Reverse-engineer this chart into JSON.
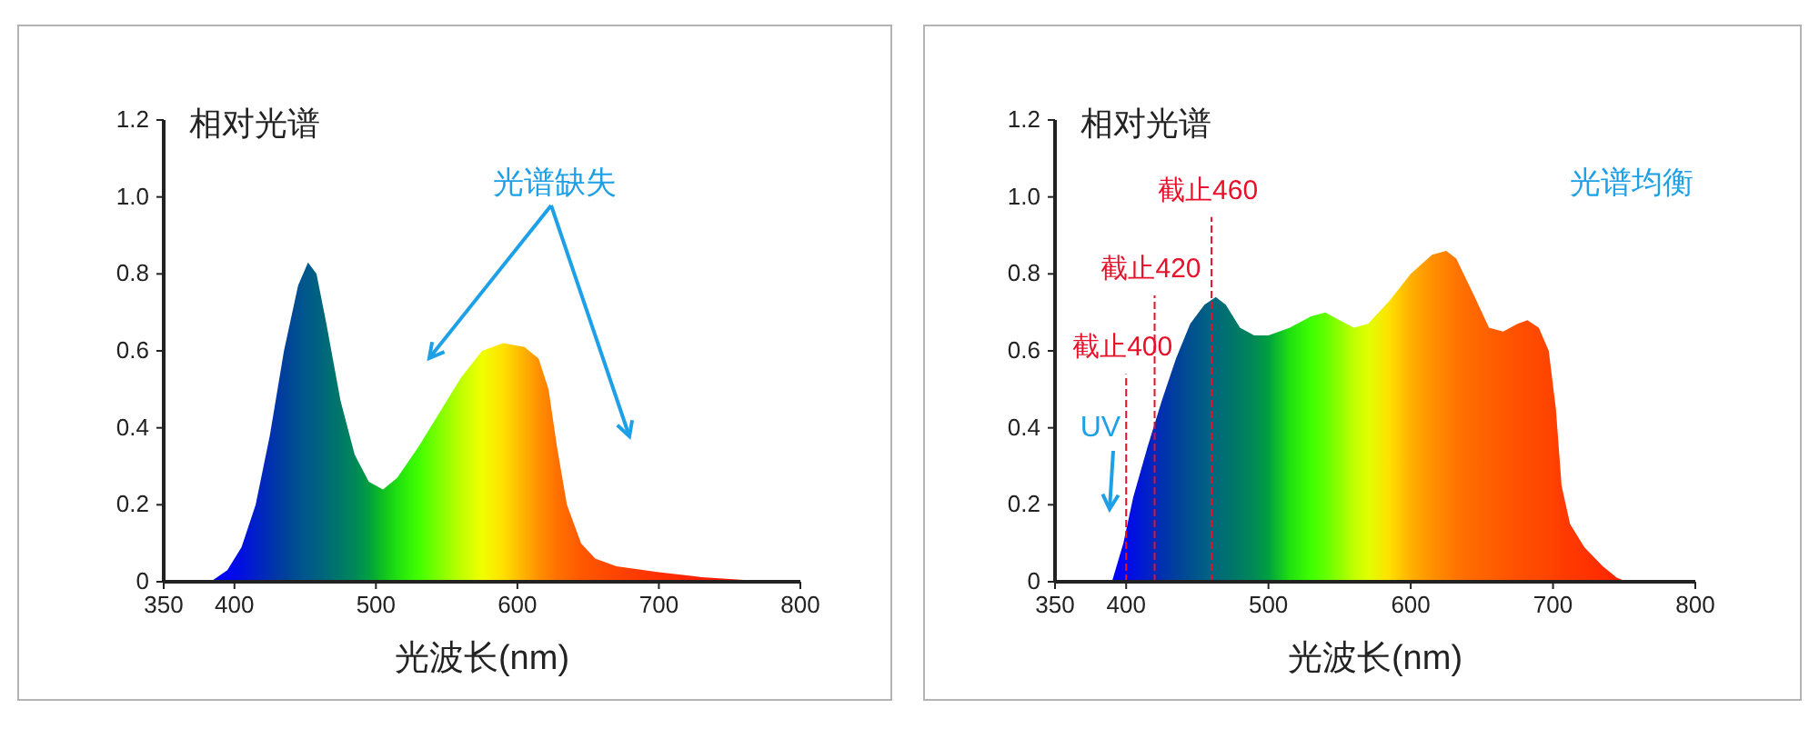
{
  "chart_data": [
    {
      "type": "area",
      "ylabel": "相对光谱",
      "xlabel": "光波长(nm)",
      "xlim": [
        350,
        800
      ],
      "ylim": [
        0,
        1.2
      ],
      "xticks": [
        350,
        400,
        500,
        600,
        700,
        800
      ],
      "yticks": [
        0,
        0.2,
        0.4,
        0.6,
        0.8,
        {
          "value": 1,
          "label": "1.0"
        },
        1.2
      ],
      "annotations": [
        "光谱缺失"
      ],
      "x": [
        375,
        385,
        395,
        405,
        415,
        425,
        435,
        445,
        452,
        458,
        465,
        475,
        485,
        495,
        505,
        515,
        530,
        545,
        560,
        575,
        590,
        605,
        615,
        622,
        628,
        635,
        645,
        655,
        670,
        700,
        730,
        760,
        790,
        800
      ],
      "values": [
        0,
        0.005,
        0.03,
        0.09,
        0.2,
        0.38,
        0.6,
        0.77,
        0.83,
        0.8,
        0.67,
        0.47,
        0.33,
        0.26,
        0.24,
        0.27,
        0.35,
        0.44,
        0.53,
        0.6,
        0.62,
        0.61,
        0.58,
        0.5,
        0.35,
        0.2,
        0.1,
        0.06,
        0.04,
        0.025,
        0.012,
        0.005,
        0.001,
        0
      ],
      "colors": [
        "#0000ff",
        "#0000ff",
        "#0008f0",
        "#0010e0",
        "#0020c8",
        "#0030b0",
        "#00409c",
        "#005090",
        "#005a8a",
        "#006080",
        "#006a78",
        "#007868",
        "#008858",
        "#00a040",
        "#10c020",
        "#20e010",
        "#40ff00",
        "#80ff00",
        "#c0ff00",
        "#f0ff00",
        "#ffe000",
        "#ffb000",
        "#ff9000",
        "#ff8000",
        "#ff7000",
        "#ff6800",
        "#ff5800",
        "#ff5000",
        "#ff4400",
        "#ff3000",
        "#ff2000",
        "#ff1800",
        "#ff1000",
        "#ff1000"
      ]
    },
    {
      "type": "area",
      "ylabel": "相对光谱",
      "xlabel": "光波长(nm)",
      "xlim": [
        350,
        800
      ],
      "ylim": [
        0,
        1.2
      ],
      "xticks": [
        350,
        400,
        500,
        600,
        700,
        800
      ],
      "yticks": [
        0,
        0.2,
        0.4,
        0.6,
        0.8,
        {
          "value": 1,
          "label": "1.0"
        },
        1.2
      ],
      "annotations": [
        "光谱均衡",
        "UV"
      ],
      "ref_lines": [
        {
          "axis": "x",
          "value": 400,
          "label": "截止400",
          "color": "#e8102a",
          "line_style": "dashed"
        },
        {
          "axis": "x",
          "value": 420,
          "label": "截止420",
          "color": "#e8102a",
          "line_style": "dashed"
        },
        {
          "axis": "x",
          "value": 460,
          "label": "截止460",
          "color": "#e8102a",
          "line_style": "dashed"
        }
      ],
      "x": [
        390,
        398,
        405,
        415,
        425,
        435,
        445,
        455,
        463,
        470,
        480,
        490,
        500,
        515,
        530,
        540,
        550,
        560,
        570,
        585,
        600,
        615,
        625,
        632,
        645,
        655,
        665,
        675,
        682,
        690,
        697,
        702,
        706,
        712,
        722,
        735,
        745,
        752
      ],
      "values": [
        0,
        0.1,
        0.22,
        0.35,
        0.47,
        0.58,
        0.67,
        0.72,
        0.74,
        0.72,
        0.66,
        0.64,
        0.64,
        0.66,
        0.69,
        0.7,
        0.68,
        0.66,
        0.67,
        0.73,
        0.8,
        0.85,
        0.86,
        0.84,
        0.74,
        0.66,
        0.65,
        0.67,
        0.68,
        0.66,
        0.6,
        0.45,
        0.25,
        0.15,
        0.09,
        0.04,
        0.01,
        0
      ],
      "colors": [
        "#0000ff",
        "#0008f0",
        "#0010e0",
        "#0020c8",
        "#0030b0",
        "#00409c",
        "#005090",
        "#005e86",
        "#006a7c",
        "#007070",
        "#007c64",
        "#008a56",
        "#00a040",
        "#20e010",
        "#40ff00",
        "#60ff00",
        "#90ff00",
        "#c0ff00",
        "#e0ff00",
        "#ffe000",
        "#ffb000",
        "#ff9000",
        "#ff8000",
        "#ff7400",
        "#ff6800",
        "#ff6000",
        "#ff5800",
        "#ff5000",
        "#ff4c00",
        "#ff4800",
        "#ff4400",
        "#ff4000",
        "#ff3c00",
        "#ff3800",
        "#ff3400",
        "#ff2c00",
        "#ff2400",
        "#ff2000"
      ]
    }
  ]
}
